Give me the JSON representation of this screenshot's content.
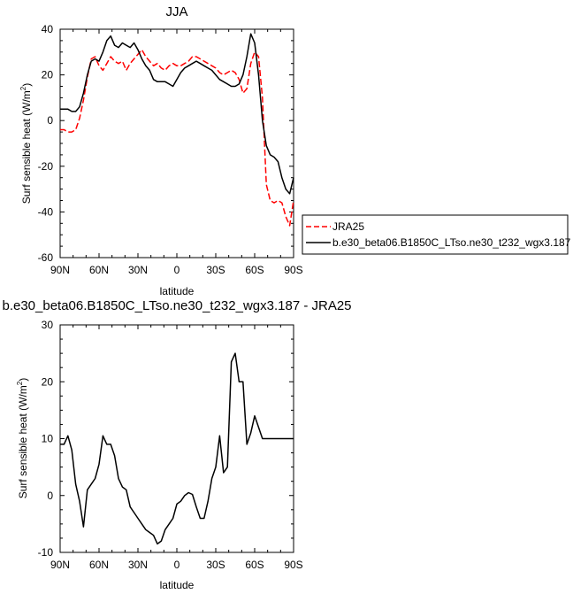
{
  "chart_data": [
    {
      "type": "line",
      "title": "JJA",
      "xlabel": "latitude",
      "ylabel": "Surf sensible heat (W/m²)",
      "ylabel_main": "Surf sensible heat (W/m",
      "ylabel_sup": "2",
      "ylabel_close": ")",
      "xlim": [
        90,
        -90
      ],
      "ylim": [
        -60,
        40
      ],
      "x_tick_values": [
        90,
        60,
        30,
        0,
        -30,
        -60,
        -90
      ],
      "x_tick_labels": [
        "90N",
        "60N",
        "30N",
        "0",
        "30S",
        "60S",
        "90S"
      ],
      "y_ticks": [
        -60,
        -40,
        -20,
        0,
        20,
        40
      ],
      "legend_position": "right, outside plot",
      "series": [
        {
          "name": "JRA25",
          "color": "#ff0000",
          "dash": "dashed",
          "x": [
            90,
            87,
            84,
            81,
            78,
            75,
            72,
            69,
            66,
            63,
            60,
            57,
            54,
            51,
            48,
            45,
            42,
            39,
            36,
            33,
            30,
            27,
            24,
            21,
            18,
            15,
            12,
            9,
            6,
            3,
            0,
            -3,
            -6,
            -9,
            -12,
            -15,
            -18,
            -21,
            -24,
            -27,
            -30,
            -33,
            -36,
            -39,
            -42,
            -45,
            -48,
            -51,
            -54,
            -57,
            -60,
            -63,
            -66,
            -69,
            -72,
            -75,
            -78,
            -81,
            -84,
            -87,
            -90
          ],
          "y": [
            -4,
            -4,
            -5,
            -5,
            -4,
            1,
            9,
            19,
            27,
            28,
            24,
            22,
            25,
            28,
            26,
            25,
            26,
            22,
            25,
            27,
            29,
            31,
            28,
            26,
            24,
            25,
            23,
            22,
            24,
            25,
            24,
            24,
            25,
            26,
            28,
            28,
            27,
            26,
            25,
            24,
            23,
            21,
            20,
            21,
            22,
            21,
            18,
            12,
            14,
            25,
            30,
            28,
            10,
            -28,
            -35,
            -36,
            -35,
            -36,
            -42,
            -46,
            -35
          ]
        },
        {
          "name": "b.e30_beta06.B1850C_LTso.ne30_t232_wgx3.187",
          "color": "#000000",
          "dash": "solid",
          "x": [
            90,
            87,
            84,
            81,
            78,
            75,
            72,
            69,
            66,
            63,
            60,
            57,
            54,
            51,
            48,
            45,
            42,
            39,
            36,
            33,
            30,
            27,
            24,
            21,
            18,
            15,
            12,
            9,
            6,
            3,
            0,
            -3,
            -6,
            -9,
            -12,
            -15,
            -18,
            -21,
            -24,
            -27,
            -30,
            -33,
            -36,
            -39,
            -42,
            -45,
            -48,
            -51,
            -54,
            -57,
            -60,
            -63,
            -66,
            -69,
            -72,
            -75,
            -78,
            -81,
            -84,
            -87,
            -90
          ],
          "y": [
            5,
            5,
            5,
            4,
            4,
            6,
            12,
            20,
            26,
            27,
            26,
            30,
            35,
            37,
            33,
            32,
            34,
            33,
            32,
            34,
            31,
            27,
            24,
            22,
            18,
            17,
            17,
            17,
            16,
            15,
            18,
            21,
            23,
            24,
            25,
            26,
            25,
            24,
            23,
            22,
            20,
            18,
            17,
            16,
            15,
            15,
            16,
            20,
            28,
            38,
            34,
            20,
            0,
            -11,
            -15,
            -16,
            -18,
            -25,
            -30,
            -32,
            -25
          ]
        }
      ]
    },
    {
      "type": "line",
      "title": "b.e30_beta06.B1850C_LTso.ne30_t232_wgx3.187 - JRA25",
      "xlabel": "latitude",
      "ylabel": "Surf sensible heat (W/m²)",
      "ylabel_main": "Surf sensible heat (W/m",
      "ylabel_sup": "2",
      "ylabel_close": ")",
      "xlim": [
        90,
        -90
      ],
      "ylim": [
        -10,
        30
      ],
      "x_tick_values": [
        90,
        60,
        30,
        0,
        -30,
        -60,
        -90
      ],
      "x_tick_labels": [
        "90N",
        "60N",
        "30N",
        "0",
        "30S",
        "60S",
        "90S"
      ],
      "y_ticks": [
        -10,
        0,
        10,
        20,
        30
      ],
      "series": [
        {
          "color": "#000000",
          "dash": "solid",
          "x": [
            90,
            87,
            84,
            81,
            78,
            75,
            72,
            69,
            66,
            63,
            60,
            57,
            54,
            51,
            48,
            45,
            42,
            39,
            36,
            33,
            30,
            27,
            24,
            21,
            18,
            15,
            12,
            9,
            6,
            3,
            0,
            -3,
            -6,
            -9,
            -12,
            -15,
            -18,
            -21,
            -24,
            -27,
            -30,
            -33,
            -36,
            -39,
            -42,
            -45,
            -48,
            -51,
            -54,
            -57,
            -60,
            -63,
            -66,
            -69,
            -72,
            -75,
            -78,
            -81,
            -84,
            -87,
            -90
          ],
          "y": [
            9,
            9,
            10.5,
            8,
            2,
            -1,
            -5.5,
            1,
            2,
            3,
            5.5,
            10.5,
            9,
            9,
            7,
            3,
            1.5,
            1,
            -2,
            -3,
            -4,
            -5,
            -6,
            -6.5,
            -7,
            -8.5,
            -8,
            -6,
            -5,
            -4,
            -1.5,
            -1,
            0,
            0.5,
            0.2,
            -2,
            -4,
            -4,
            -1,
            3,
            5,
            10.5,
            4,
            5,
            23.5,
            25,
            20,
            20,
            9,
            11,
            14,
            12,
            10,
            10,
            10,
            10,
            10,
            10,
            10,
            10,
            10
          ]
        }
      ]
    }
  ]
}
